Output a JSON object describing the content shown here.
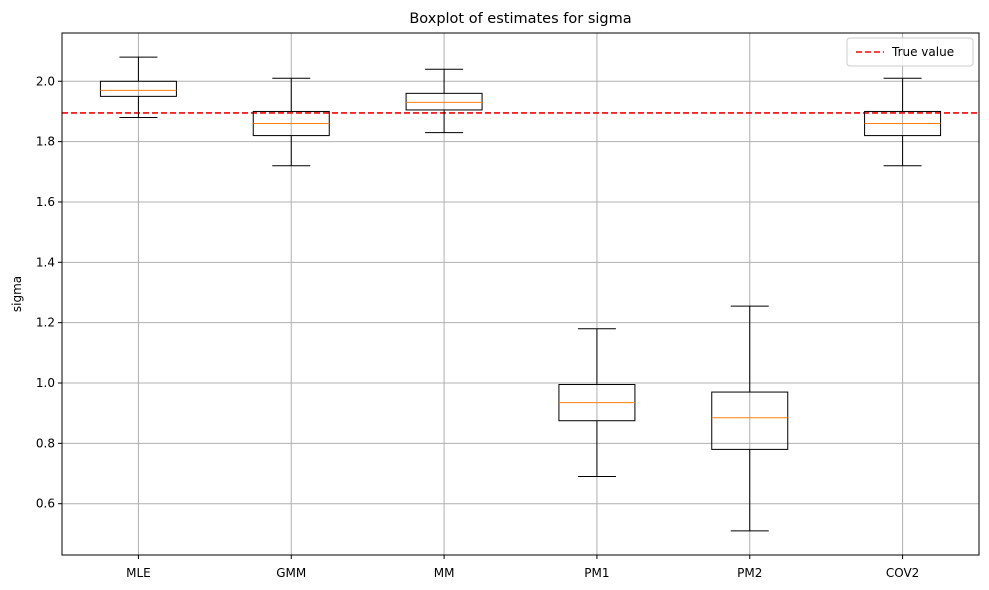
{
  "chart_data": {
    "type": "boxplot",
    "title": "Boxplot of estimates for sigma",
    "xlabel": "",
    "ylabel": "sigma",
    "categories": [
      "MLE",
      "GMM",
      "MM",
      "PM1",
      "PM2",
      "COV2"
    ],
    "boxes": [
      {
        "whisker_low": 1.88,
        "q1": 1.95,
        "median": 1.97,
        "q3": 2.0,
        "whisker_high": 2.08
      },
      {
        "whisker_low": 1.72,
        "q1": 1.82,
        "median": 1.86,
        "q3": 1.9,
        "whisker_high": 2.01
      },
      {
        "whisker_low": 1.83,
        "q1": 1.905,
        "median": 1.93,
        "q3": 1.96,
        "whisker_high": 2.04
      },
      {
        "whisker_low": 0.69,
        "q1": 0.875,
        "median": 0.935,
        "q3": 0.995,
        "whisker_high": 1.18
      },
      {
        "whisker_low": 0.51,
        "q1": 0.78,
        "median": 0.885,
        "q3": 0.97,
        "whisker_high": 1.255
      },
      {
        "whisker_low": 1.72,
        "q1": 1.82,
        "median": 1.86,
        "q3": 1.9,
        "whisker_high": 2.01
      }
    ],
    "reference_line": {
      "value": 1.895,
      "label": "True value",
      "color": "#ff0000",
      "style": "dashed"
    },
    "ylim": [
      0.43,
      2.16
    ],
    "yticks": [
      0.6,
      0.8,
      1.0,
      1.2,
      1.4,
      1.6,
      1.8,
      2.0
    ],
    "ytick_labels": [
      "0.6",
      "0.8",
      "1.0",
      "1.2",
      "1.4",
      "1.6",
      "1.8",
      "2.0"
    ],
    "grid": true,
    "legend_position": "top-right",
    "colors": {
      "box": "#000000",
      "median": "#ff7f0e",
      "grid": "#b0b0b0",
      "reference": "#ff0000"
    }
  }
}
